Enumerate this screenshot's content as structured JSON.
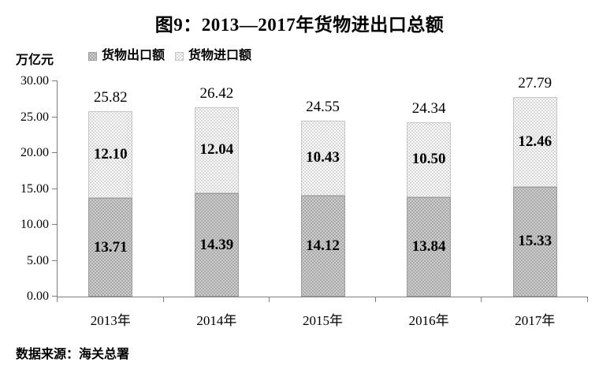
{
  "title": "图9：2013—2017年货物进出口总额",
  "unit_label": "万亿元",
  "legend": {
    "export_label": "货物出口额",
    "import_label": "货物进口额"
  },
  "source_note": "数据来源：海关总署",
  "colors": {
    "export_fill": "#a7a7a7",
    "export_dot": "#ffffff",
    "import_fill": "#ffffff",
    "import_dot": "#9e9e9e",
    "axis": "#7f7f7f",
    "text": "#000000"
  },
  "chart_data": {
    "type": "bar",
    "stacked": true,
    "title": "图9：2013—2017年货物进出口总额",
    "ylabel": "万亿元",
    "xlabel": "",
    "categories": [
      "2013年",
      "2014年",
      "2015年",
      "2016年",
      "2017年"
    ],
    "series": [
      {
        "name": "货物出口额",
        "values": [
          13.71,
          14.39,
          14.12,
          13.84,
          15.33
        ],
        "labels": [
          "13.71",
          "14.39",
          "14.12",
          "13.84",
          "15.33"
        ]
      },
      {
        "name": "货物进口额",
        "values": [
          12.1,
          12.04,
          10.43,
          10.5,
          12.46
        ],
        "labels": [
          "12.10",
          "12.04",
          "10.43",
          "10.50",
          "12.46"
        ]
      }
    ],
    "totals": [
      "25.82",
      "26.42",
      "24.55",
      "24.34",
      "27.79"
    ],
    "ylim": [
      0,
      30
    ],
    "ytick_step": 5,
    "ytick_labels": [
      "0.00",
      "5.00",
      "10.00",
      "15.00",
      "20.00",
      "25.00",
      "30.00"
    ],
    "legend_position": "top",
    "grid": false,
    "source": "数据来源：海关总署"
  }
}
